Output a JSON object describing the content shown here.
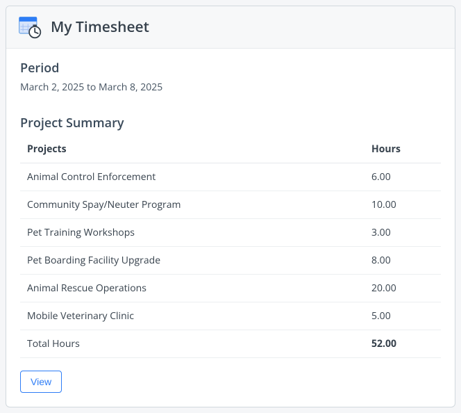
{
  "header": {
    "title": "My Timesheet",
    "icon_colors": {
      "calendar_fill": "#d6e4fb",
      "calendar_stroke": "#4a90e2",
      "calendar_bar": "#2e7df6",
      "clock_fill": "#ffffff",
      "clock_stroke": "#36414c"
    }
  },
  "period": {
    "label": "Period",
    "text": "March 2, 2025 to March 8, 2025"
  },
  "summary": {
    "title": "Project Summary",
    "columns": {
      "projects": "Projects",
      "hours": "Hours"
    },
    "rows": [
      {
        "project": "Animal Control Enforcement",
        "hours": "6.00"
      },
      {
        "project": "Community Spay/Neuter Program",
        "hours": "10.00"
      },
      {
        "project": "Pet Training Workshops",
        "hours": "3.00"
      },
      {
        "project": "Pet Boarding Facility Upgrade",
        "hours": "8.00"
      },
      {
        "project": "Animal Rescue Operations",
        "hours": "20.00"
      },
      {
        "project": "Mobile Veterinary Clinic",
        "hours": "5.00"
      }
    ],
    "total": {
      "label": "Total Hours",
      "hours": "52.00"
    }
  },
  "actions": {
    "view_label": "View"
  },
  "style": {
    "card_bg": "#ffffff",
    "card_border": "#d1d8dd",
    "header_bg": "#f7f8f9",
    "text_color": "#36414c",
    "accent": "#2e7df6",
    "row_border": "#eceff1"
  }
}
